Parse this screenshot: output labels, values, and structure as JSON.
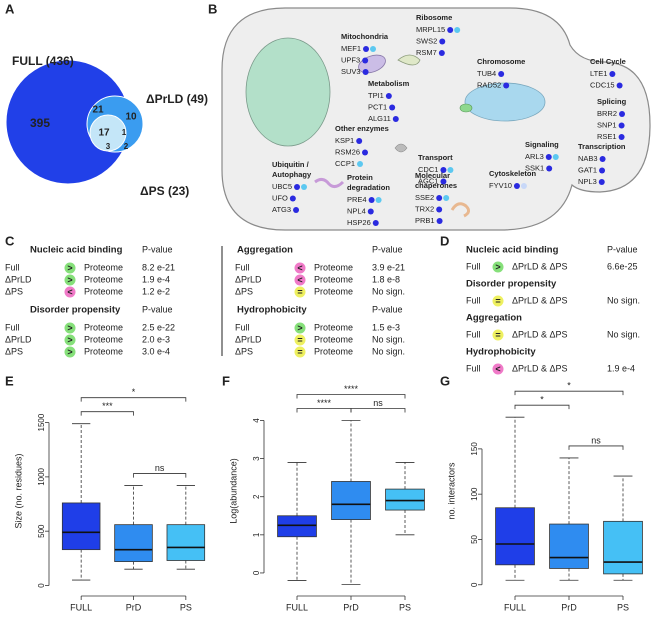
{
  "panel_labels": [
    "A",
    "B",
    "C",
    "D",
    "E",
    "F",
    "G"
  ],
  "venn": {
    "sets": [
      {
        "label": "FULL (436)",
        "color": "#2140e8"
      },
      {
        "label": "ΔPrLD (49)",
        "color": "#3a9cf0"
      },
      {
        "label": "ΔPS (23)",
        "color": "#c4e6f8"
      }
    ],
    "regions": [
      395,
      21,
      10,
      17,
      1,
      3,
      2
    ]
  },
  "cell": {
    "groups": [
      {
        "title": [
          "Mitochondria"
        ],
        "genes": [
          {
            "name": "MEF1",
            "dots": [
              "#2a2ae0",
              "#5cc8f0"
            ]
          },
          {
            "name": "UPF3",
            "dots": [
              "#2a2ae0"
            ]
          },
          {
            "name": "SUV3",
            "dots": [
              "#2a2ae0"
            ]
          }
        ]
      },
      {
        "title": [
          "Ribosome"
        ],
        "genes": [
          {
            "name": "MRPL15",
            "dots": [
              "#2a2ae0",
              "#5cc8f0"
            ]
          },
          {
            "name": "SWS2",
            "dots": [
              "#2a2ae0"
            ]
          },
          {
            "name": "RSM7",
            "dots": [
              "#2a2ae0"
            ]
          }
        ]
      },
      {
        "title": [
          "Chromosome"
        ],
        "genes": [
          {
            "name": "TUB4",
            "dots": [
              "#2a2ae0"
            ]
          },
          {
            "name": "RAD52",
            "dots": [
              "#2a2ae0"
            ]
          }
        ]
      },
      {
        "title": [
          "Cell Cycle"
        ],
        "genes": [
          {
            "name": "LTE1",
            "dots": [
              "#2a2ae0"
            ]
          },
          {
            "name": "CDC15",
            "dots": [
              "#2a2ae0"
            ]
          }
        ]
      },
      {
        "title": [
          "Metabolism"
        ],
        "genes": [
          {
            "name": "TPI1",
            "dots": [
              "#2a2ae0"
            ]
          },
          {
            "name": "PCT1",
            "dots": [
              "#2a2ae0"
            ]
          },
          {
            "name": "ALG11",
            "dots": [
              "#2a2ae0"
            ]
          }
        ]
      },
      {
        "title": [
          "Splicing"
        ],
        "genes": [
          {
            "name": "BRR2",
            "dots": [
              "#2a2ae0"
            ]
          },
          {
            "name": "SNP1",
            "dots": [
              "#2a2ae0"
            ]
          },
          {
            "name": "RSE1",
            "dots": [
              "#2a2ae0"
            ]
          }
        ]
      },
      {
        "title": [
          "Other enzymes"
        ],
        "genes": [
          {
            "name": "KSP1",
            "dots": [
              "#2a2ae0"
            ]
          },
          {
            "name": "RSM26",
            "dots": [
              "#2a2ae0"
            ]
          },
          {
            "name": "CCP1",
            "dots": [
              "#5cc8f0"
            ]
          }
        ]
      },
      {
        "title": [
          "Signaling"
        ],
        "genes": [
          {
            "name": "ARL3",
            "dots": [
              "#2a2ae0",
              "#5cc8f0"
            ]
          },
          {
            "name": "SSK1",
            "dots": [
              "#2a2ae0"
            ]
          }
        ]
      },
      {
        "title": [
          "Transcription"
        ],
        "genes": [
          {
            "name": "NAB3",
            "dots": [
              "#2a2ae0"
            ]
          },
          {
            "name": "GAT1",
            "dots": [
              "#2a2ae0"
            ]
          },
          {
            "name": "NPL3",
            "dots": [
              "#2a2ae0"
            ]
          }
        ]
      },
      {
        "title": [
          "Transport"
        ],
        "genes": [
          {
            "name": "CDC1",
            "dots": [
              "#2a2ae0",
              "#5cc8f0"
            ]
          },
          {
            "name": "AGC1",
            "dots": [
              "#2a2ae0"
            ]
          }
        ]
      },
      {
        "title": [
          "Cytoskeleton"
        ],
        "genes": [
          {
            "name": "FYV10",
            "dots": [
              "#2a2ae0",
              "#c8d8f8"
            ]
          }
        ]
      },
      {
        "title": [
          "Ubiquitin /",
          "Autophagy"
        ],
        "genes": [
          {
            "name": "UBC5",
            "dots": [
              "#2a2ae0",
              "#5cc8f0"
            ]
          },
          {
            "name": "UFO",
            "dots": [
              "#2a2ae0"
            ]
          },
          {
            "name": "ATG3",
            "dots": [
              "#2a2ae0"
            ]
          }
        ]
      },
      {
        "title": [
          "Protein",
          "degradation"
        ],
        "genes": [
          {
            "name": "PRE4",
            "dots": [
              "#2a2ae0",
              "#5cc8f0"
            ]
          },
          {
            "name": "NPL4",
            "dots": [
              "#2a2ae0"
            ]
          },
          {
            "name": "HSP26",
            "dots": [
              "#2a2ae0"
            ]
          }
        ]
      },
      {
        "title": [
          "Molecular",
          "chaperones"
        ],
        "genes": [
          {
            "name": "SSE2",
            "dots": [
              "#2a2ae0",
              "#5cc8f0"
            ]
          },
          {
            "name": "TRX2",
            "dots": [
              "#2a2ae0"
            ]
          },
          {
            "name": "PRB1",
            "dots": [
              "#2a2ae0"
            ]
          }
        ]
      }
    ]
  },
  "tests_c": {
    "columns": [
      [
        {
          "title": "Nucleic acid binding",
          "pvalue_header": "P-value",
          "rows": [
            {
              "set": "Full",
              "symbol": ">",
              "symbol_color": "#86e07a",
              "reference": "Proteome",
              "pvalue": "8.2 e-21"
            },
            {
              "set": "ΔPrLD",
              "symbol": ">",
              "symbol_color": "#86e07a",
              "reference": "Proteome",
              "pvalue": "1.9 e-4"
            },
            {
              "set": "ΔPS",
              "symbol": "<",
              "symbol_color": "#f07ac8",
              "reference": "Proteome",
              "pvalue": "1.2 e-2"
            }
          ]
        },
        {
          "title": "Disorder propensity",
          "pvalue_header": "P-value",
          "rows": [
            {
              "set": "Full",
              "symbol": ">",
              "symbol_color": "#86e07a",
              "reference": "Proteome",
              "pvalue": "2.5 e-22"
            },
            {
              "set": "ΔPrLD",
              "symbol": ">",
              "symbol_color": "#86e07a",
              "reference": "Proteome",
              "pvalue": "2.0 e-3"
            },
            {
              "set": "ΔPS",
              "symbol": ">",
              "symbol_color": "#86e07a",
              "reference": "Proteome",
              "pvalue": "3.0 e-4"
            }
          ]
        }
      ],
      [
        {
          "title": "Aggregation",
          "pvalue_header": "P-value",
          "rows": [
            {
              "set": "Full",
              "symbol": "<",
              "symbol_color": "#f07ac8",
              "reference": "Proteome",
              "pvalue": "3.9 e-21"
            },
            {
              "set": "ΔPrLD",
              "symbol": "<",
              "symbol_color": "#f07ac8",
              "reference": "Proteome",
              "pvalue": "1.8 e-8"
            },
            {
              "set": "ΔPS",
              "symbol": "=",
              "symbol_color": "#eef060",
              "reference": "Proteome",
              "pvalue": "No sign."
            }
          ]
        },
        {
          "title": "Hydrophobicity",
          "pvalue_header": "P-value",
          "rows": [
            {
              "set": "Full",
              "symbol": ">",
              "symbol_color": "#86e07a",
              "reference": "Proteome",
              "pvalue": "1.5 e-3"
            },
            {
              "set": "ΔPrLD",
              "symbol": "=",
              "symbol_color": "#eef060",
              "reference": "Proteome",
              "pvalue": "No sign."
            },
            {
              "set": "ΔPS",
              "symbol": "=",
              "symbol_color": "#eef060",
              "reference": "Proteome",
              "pvalue": "No sign."
            }
          ]
        }
      ]
    ]
  },
  "tests_d": {
    "sections": [
      {
        "title": "Nucleic acid binding",
        "pvalue_header": "P-value",
        "rows": [
          {
            "set": "Full",
            "symbol": ">",
            "symbol_color": "#86e07a",
            "reference": "ΔPrLD & ΔPS",
            "pvalue": "6.6e-25"
          }
        ]
      },
      {
        "title": "Disorder propensity",
        "rows": [
          {
            "set": "Full",
            "symbol": "=",
            "symbol_color": "#eef060",
            "reference": "ΔPrLD & ΔPS",
            "pvalue": "No sign."
          }
        ]
      },
      {
        "title": "Aggregation",
        "rows": [
          {
            "set": "Full",
            "symbol": "=",
            "symbol_color": "#eef060",
            "reference": "ΔPrLD & ΔPS",
            "pvalue": "No sign."
          }
        ]
      },
      {
        "title": "Hydrophobicity",
        "rows": [
          {
            "set": "Full",
            "symbol": "<",
            "symbol_color": "#f07ac8",
            "reference": "ΔPrLD & ΔPS",
            "pvalue": "1.9 e-4"
          }
        ]
      }
    ]
  },
  "chart_data": [
    {
      "type": "box",
      "y_label": "Size (no. residues)",
      "categories": [
        "FULL",
        "PrD",
        "PS"
      ],
      "colors": [
        "#1f3ee8",
        "#2f8cf0",
        "#45c0f5"
      ],
      "stats": [
        {
          "low": 50,
          "q1": 330,
          "median": 490,
          "q3": 760,
          "high": 1490
        },
        {
          "low": 150,
          "q1": 220,
          "median": 330,
          "q3": 560,
          "high": 920
        },
        {
          "low": 150,
          "q1": 230,
          "median": 350,
          "q3": 560,
          "high": 920
        }
      ],
      "ylim": [
        -60,
        1800
      ],
      "yticks": [
        0,
        500,
        1000,
        1500
      ],
      "significance": [
        {
          "groups": [
            "FULL",
            "PS"
          ],
          "label": "*"
        },
        {
          "groups": [
            "FULL",
            "PrD"
          ],
          "label": "***"
        },
        {
          "groups": [
            "PrD",
            "PS"
          ],
          "label": "ns"
        }
      ]
    },
    {
      "type": "box",
      "y_label": "Log(abundance)",
      "categories": [
        "FULL",
        "PrD",
        "PS"
      ],
      "colors": [
        "#1f3ee8",
        "#2f8cf0",
        "#45c0f5"
      ],
      "stats": [
        {
          "low": -0.2,
          "q1": 0.95,
          "median": 1.25,
          "q3": 1.5,
          "high": 2.9
        },
        {
          "low": -0.3,
          "q1": 1.4,
          "median": 1.8,
          "q3": 2.4,
          "high": 4.0
        },
        {
          "low": 1.0,
          "q1": 1.65,
          "median": 1.9,
          "q3": 2.2,
          "high": 2.9
        }
      ],
      "ylim": [
        -0.5,
        4.8
      ],
      "yticks": [
        0,
        1,
        2,
        3,
        4
      ],
      "significance": [
        {
          "groups": [
            "FULL",
            "PS"
          ],
          "label": "****"
        },
        {
          "groups": [
            "FULL",
            "PrD"
          ],
          "label": "****"
        },
        {
          "groups": [
            "PrD",
            "PS"
          ],
          "label": "ns"
        }
      ]
    },
    {
      "type": "box",
      "y_label": "no. interactors",
      "categories": [
        "FULL",
        "PrD",
        "PS"
      ],
      "colors": [
        "#1f3ee8",
        "#2f8cf0",
        "#45c0f5"
      ],
      "stats": [
        {
          "low": 5,
          "q1": 22,
          "median": 45,
          "q3": 85,
          "high": 185
        },
        {
          "low": 5,
          "q1": 18,
          "median": 30,
          "q3": 67,
          "high": 140
        },
        {
          "low": 5,
          "q1": 12,
          "median": 25,
          "q3": 70,
          "high": 120
        }
      ],
      "ylim": [
        -8,
        215
      ],
      "yticks": [
        0,
        50,
        100,
        150
      ],
      "significance": [
        {
          "groups": [
            "FULL",
            "PS"
          ],
          "label": "*"
        },
        {
          "groups": [
            "FULL",
            "PrD"
          ],
          "label": "*"
        },
        {
          "groups": [
            "PrD",
            "PS"
          ],
          "label": "ns"
        }
      ]
    }
  ]
}
